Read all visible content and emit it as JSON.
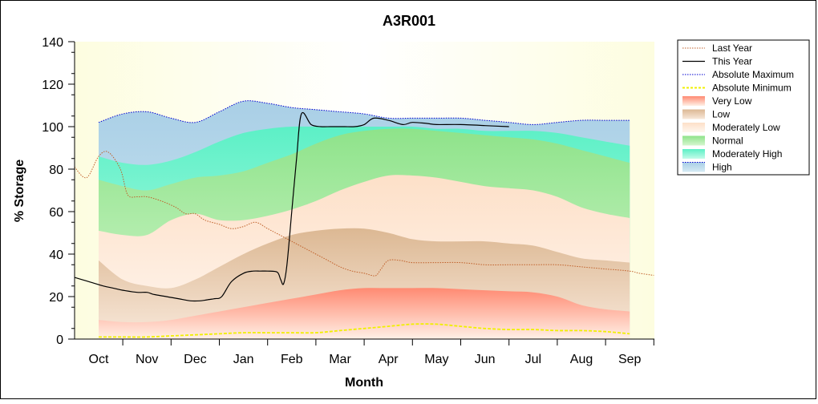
{
  "chart_data": {
    "type": "area",
    "title": "A3R001",
    "xlabel": "Month",
    "ylabel": "% Storage",
    "ylim": [
      0,
      140
    ],
    "yticks": [
      0,
      20,
      40,
      60,
      80,
      100,
      120,
      140
    ],
    "xticks": [
      "Oct",
      "Nov",
      "Dec",
      "Jan",
      "Feb",
      "Mar",
      "Apr",
      "May",
      "Jun",
      "Jul",
      "Aug",
      "Sep"
    ],
    "legend_position": "right",
    "bands": {
      "x": [
        0,
        0.5,
        1,
        1.5,
        2,
        2.5,
        3,
        3.5,
        4,
        4.5,
        5,
        5.5,
        6,
        6.5,
        7,
        7.5,
        8,
        8.5,
        9,
        9.5,
        10,
        10.5,
        11
      ],
      "very_low_top": [
        9,
        8,
        8,
        9,
        11,
        13,
        15,
        17,
        19,
        21,
        23,
        24,
        24,
        24,
        24,
        23.5,
        23,
        22.5,
        22,
        20,
        16,
        14,
        13
      ],
      "low_top": [
        37,
        28,
        25,
        24,
        28,
        34,
        40,
        45,
        49,
        51,
        52,
        52,
        50,
        47,
        46,
        46,
        46,
        45,
        44,
        41,
        38,
        37,
        36
      ],
      "moderately_low_top": [
        51,
        49,
        49,
        56,
        59,
        56,
        56,
        58,
        61,
        65,
        70,
        74,
        77,
        77,
        76,
        74,
        72,
        71,
        70,
        67,
        62,
        59,
        57
      ],
      "normal_top": [
        75,
        72,
        70,
        73,
        76,
        77,
        79,
        83,
        87,
        92,
        96,
        98,
        99,
        99,
        98,
        97,
        96,
        95,
        94,
        92,
        89,
        86,
        83
      ],
      "moderately_high_top": [
        86,
        83,
        82,
        84,
        88,
        93,
        97,
        99,
        100,
        100,
        100,
        100,
        100,
        100,
        99,
        99,
        98,
        98,
        98,
        97,
        95,
        93,
        91
      ],
      "high_top": [
        102,
        106,
        107,
        104,
        102,
        107,
        112,
        111,
        109,
        108,
        107,
        106,
        104,
        104,
        104,
        104,
        103,
        102,
        101,
        102,
        103,
        103,
        103
      ]
    },
    "series": [
      {
        "name": "Last Year",
        "color": "#c0602a",
        "style": "dotted",
        "x": [
          -0.5,
          -0.25,
          0,
          0.2,
          0.45,
          0.6,
          0.8,
          1,
          1.3,
          1.6,
          1.8,
          2,
          2.2,
          2.5,
          2.75,
          3,
          3.25,
          3.5,
          3.75,
          4,
          4.25,
          4.5,
          4.75,
          5,
          5.25,
          5.5,
          5.65,
          5.75,
          5.85,
          6,
          6.25,
          6.5,
          7,
          7.5,
          8,
          8.5,
          9,
          9.5,
          10,
          10.5,
          11,
          11.2,
          11.5
        ],
        "y": [
          81,
          76,
          86,
          88,
          80,
          68,
          67,
          67,
          65,
          62,
          59,
          59,
          56,
          54,
          52,
          53,
          55,
          52,
          49,
          46,
          43,
          40,
          37,
          34,
          32,
          31,
          30,
          30,
          33,
          37,
          37,
          36,
          36,
          36,
          35,
          35,
          35,
          35,
          34,
          33,
          32,
          31,
          30
        ]
      },
      {
        "name": "This Year",
        "color": "#000000",
        "style": "solid",
        "x": [
          -0.5,
          -0.2,
          0.1,
          0.3,
          0.5,
          0.8,
          1,
          1.15,
          1.4,
          1.65,
          1.9,
          2.1,
          2.25,
          2.4,
          2.55,
          2.75,
          3,
          3.2,
          3.35,
          3.5,
          3.7,
          3.77,
          3.83,
          3.9,
          4,
          4.1,
          4.2,
          4.4,
          4.6,
          4.8,
          4.95,
          5.1,
          5.3,
          5.5,
          5.7,
          6,
          6.3,
          6.5,
          6.8,
          7,
          7.5,
          8,
          8.5
        ],
        "y": [
          29,
          27,
          25,
          24,
          23,
          22,
          22,
          21,
          20,
          19,
          18,
          18,
          18.5,
          19,
          20,
          27,
          31,
          32,
          32,
          32,
          31.5,
          28,
          26,
          35,
          60,
          85,
          106,
          101,
          100,
          100,
          100,
          100,
          100,
          101,
          104,
          103,
          101,
          102,
          101.5,
          101,
          101,
          100.5,
          100
        ]
      },
      {
        "name": "Absolute Maximum",
        "color": "#0000d0",
        "style": "dotted",
        "x": [
          0,
          0.5,
          1,
          1.5,
          2,
          2.5,
          3,
          3.5,
          4,
          4.5,
          5,
          5.5,
          6,
          6.5,
          7,
          7.5,
          8,
          8.5,
          9,
          9.5,
          10,
          10.5,
          11
        ],
        "y": [
          102,
          106,
          107,
          104,
          102,
          107,
          112,
          111,
          109,
          108,
          107,
          106,
          104,
          104,
          104,
          104,
          103,
          102,
          101,
          102,
          103,
          103,
          103
        ]
      },
      {
        "name": "Absolute Minimum",
        "color": "#f0f000",
        "style": "dashed",
        "x": [
          0,
          0.5,
          1,
          1.5,
          2,
          2.5,
          3,
          3.5,
          4,
          4.5,
          5,
          5.5,
          6,
          6.5,
          7,
          7.5,
          8,
          8.5,
          9,
          9.5,
          10,
          10.5,
          11
        ],
        "y": [
          1,
          1,
          1,
          1.5,
          2,
          2.5,
          3,
          3,
          3,
          3,
          4,
          5,
          6,
          7,
          7,
          6,
          5,
          4.5,
          4.5,
          4,
          4,
          3.5,
          2.5
        ]
      }
    ],
    "legend": [
      {
        "label": "Last Year",
        "kind": "line",
        "color": "#c0602a",
        "style": "dotted"
      },
      {
        "label": "This Year",
        "kind": "line",
        "color": "#000000",
        "style": "solid"
      },
      {
        "label": "Absolute Maximum",
        "kind": "line",
        "color": "#0000d0",
        "style": "dotted"
      },
      {
        "label": "Absolute Minimum",
        "kind": "line",
        "color": "#f0f000",
        "style": "dashed"
      },
      {
        "label": "Very Low",
        "kind": "band",
        "color": "#ff8f78",
        "style": "fill"
      },
      {
        "label": "Low",
        "kind": "band",
        "color": "#dcb893",
        "style": "fill"
      },
      {
        "label": "Moderately Low",
        "kind": "band",
        "color": "#fde2cb",
        "style": "fill"
      },
      {
        "label": "Normal",
        "kind": "band",
        "color": "#86e285",
        "style": "fill"
      },
      {
        "label": "Moderately High",
        "kind": "band",
        "color": "#5ff2c6",
        "style": "fill"
      },
      {
        "label": "High",
        "kind": "band",
        "color": "#9fcde8",
        "style": "fill"
      }
    ],
    "colors": {
      "plot_background": "#fdfde3",
      "very_low": "#ff8f78",
      "low": "#dcb893",
      "moderately_low": "#fde2cb",
      "normal": "#86e285",
      "moderately_high": "#5ff2c6",
      "high": "#9fcde8"
    }
  }
}
